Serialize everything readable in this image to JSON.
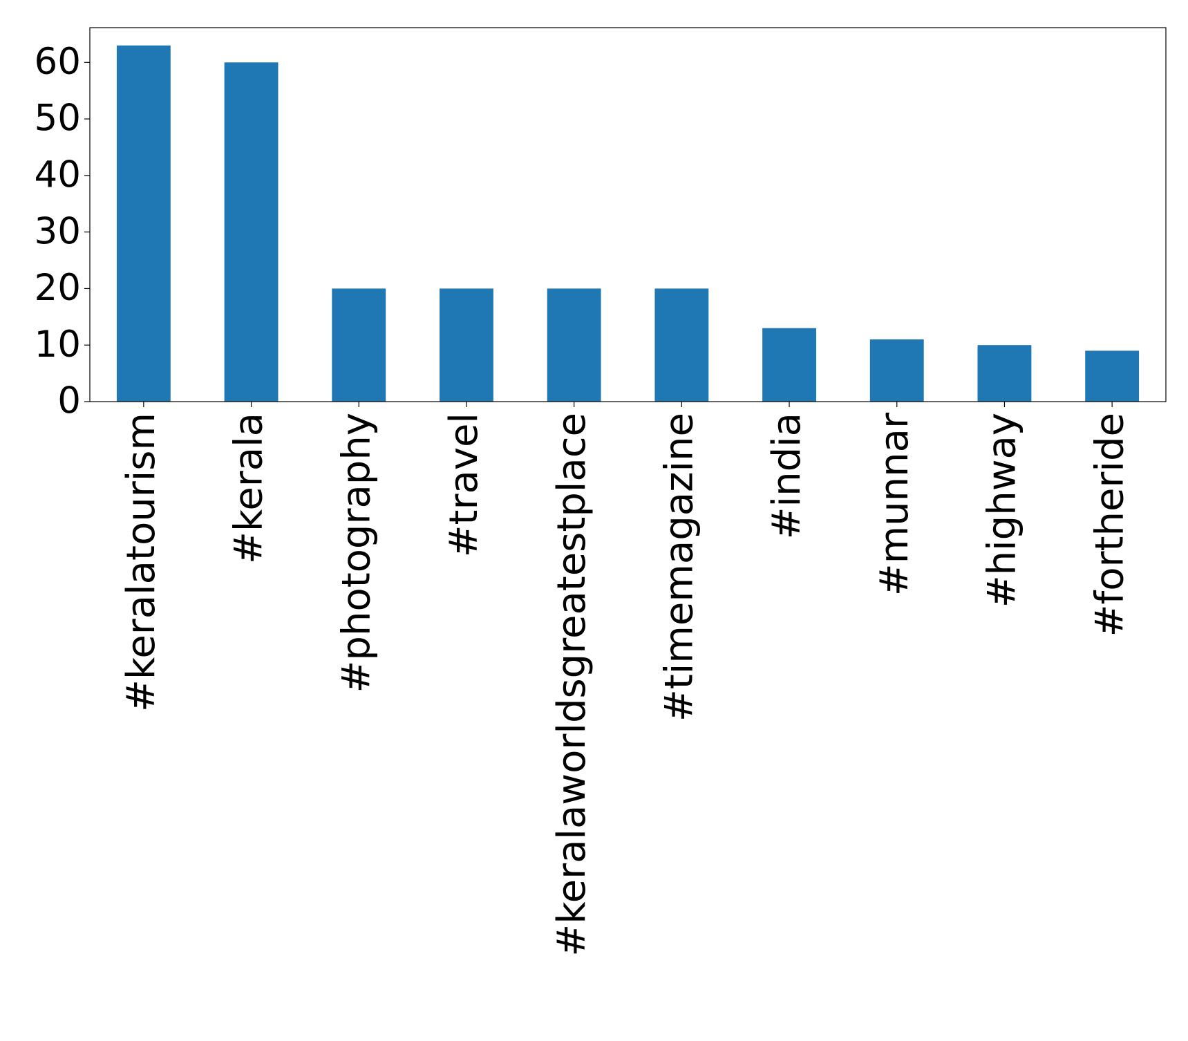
{
  "chart_data": {
    "type": "bar",
    "categories": [
      "#keralatourism",
      "#kerala",
      "#photography",
      "#travel",
      "#keralaworldsgreatestplace",
      "#timemagazine",
      "#india",
      "#munnar",
      "#highway",
      "#fortheride"
    ],
    "values": [
      63,
      60,
      20,
      20,
      20,
      20,
      13,
      11,
      10,
      9
    ],
    "color": "#1f77b4",
    "ylim": [
      0,
      66.15
    ],
    "yticks": [
      0,
      10,
      20,
      30,
      40,
      50,
      60
    ],
    "grid": false
  }
}
